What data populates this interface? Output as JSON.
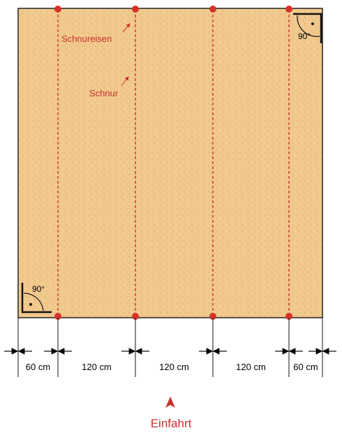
{
  "labels": {
    "stake": "Schnureisen",
    "string": "Schnur",
    "angle_top": "90°",
    "angle_bottom": "90°",
    "entrance": "Einfahrt"
  },
  "dimensions": [
    "60 cm",
    "120 cm",
    "120 cm",
    "120 cm",
    "60 cm"
  ]
}
